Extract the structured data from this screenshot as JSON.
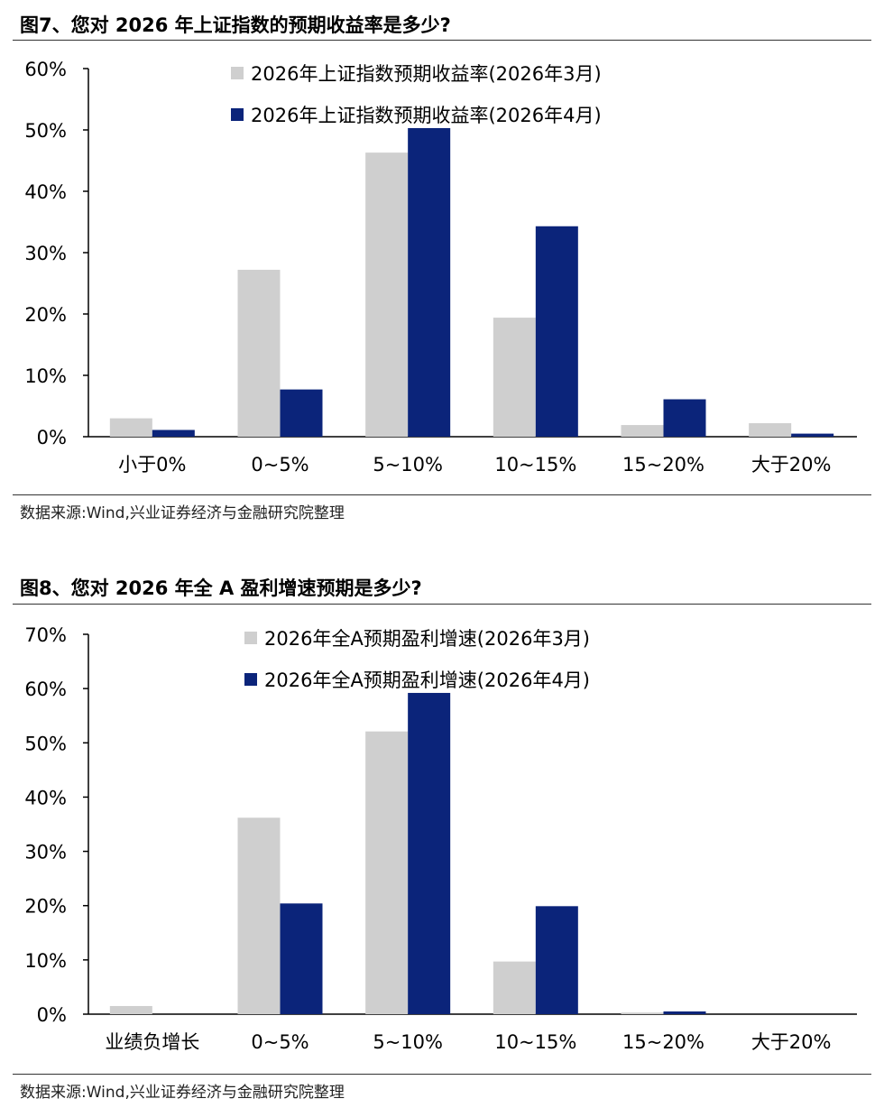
{
  "figures": [
    {
      "title": "图7、您对 2026 年上证指数的预期收益率是多少?",
      "source": "数据来源:Wind,兴业证券经济与金融研究院整理"
    },
    {
      "title": "图8、您对 2026 年全 A 盈利增速预期是多少?",
      "source": "数据来源:Wind,兴业证券经济与金融研究院整理"
    }
  ],
  "colors": {
    "march": "#cfcfcf",
    "april": "#0b247a"
  },
  "chart_data": [
    {
      "type": "bar",
      "title": "",
      "xlabel": "",
      "ylabel": "",
      "ylim": [
        0,
        60
      ],
      "yticks": [
        0,
        10,
        20,
        30,
        40,
        50,
        60
      ],
      "ytick_labels": [
        "0%",
        "10%",
        "20%",
        "30%",
        "40%",
        "50%",
        "60%"
      ],
      "categories": [
        "小于0%",
        "0~5%",
        "5~10%",
        "10~15%",
        "15~20%",
        "大于20%"
      ],
      "legend": "top-center",
      "grid": false,
      "series": [
        {
          "name": "2026年上证指数预期收益率(2026年3月)",
          "values": [
            3.0,
            27.2,
            46.3,
            19.4,
            1.9,
            2.2
          ]
        },
        {
          "name": "2026年上证指数预期收益率(2026年4月)",
          "values": [
            1.1,
            7.7,
            50.3,
            34.3,
            6.1,
            0.5
          ]
        }
      ]
    },
    {
      "type": "bar",
      "title": "",
      "xlabel": "",
      "ylabel": "",
      "ylim": [
        0,
        70
      ],
      "yticks": [
        0,
        10,
        20,
        30,
        40,
        50,
        60,
        70
      ],
      "ytick_labels": [
        "0%",
        "10%",
        "20%",
        "30%",
        "40%",
        "50%",
        "60%",
        "70%"
      ],
      "categories": [
        "业绩负增长",
        "0~5%",
        "5~10%",
        "10~15%",
        "15~20%",
        "大于20%"
      ],
      "legend": "top-center",
      "grid": false,
      "series": [
        {
          "name": "2026年全A预期盈利增速(2026年3月)",
          "values": [
            1.5,
            36.2,
            52.1,
            9.7,
            0.3,
            0.0
          ]
        },
        {
          "name": "2026年全A预期盈利增速(2026年4月)",
          "values": [
            0.0,
            20.4,
            59.2,
            19.9,
            0.5,
            0.0
          ]
        }
      ]
    }
  ]
}
